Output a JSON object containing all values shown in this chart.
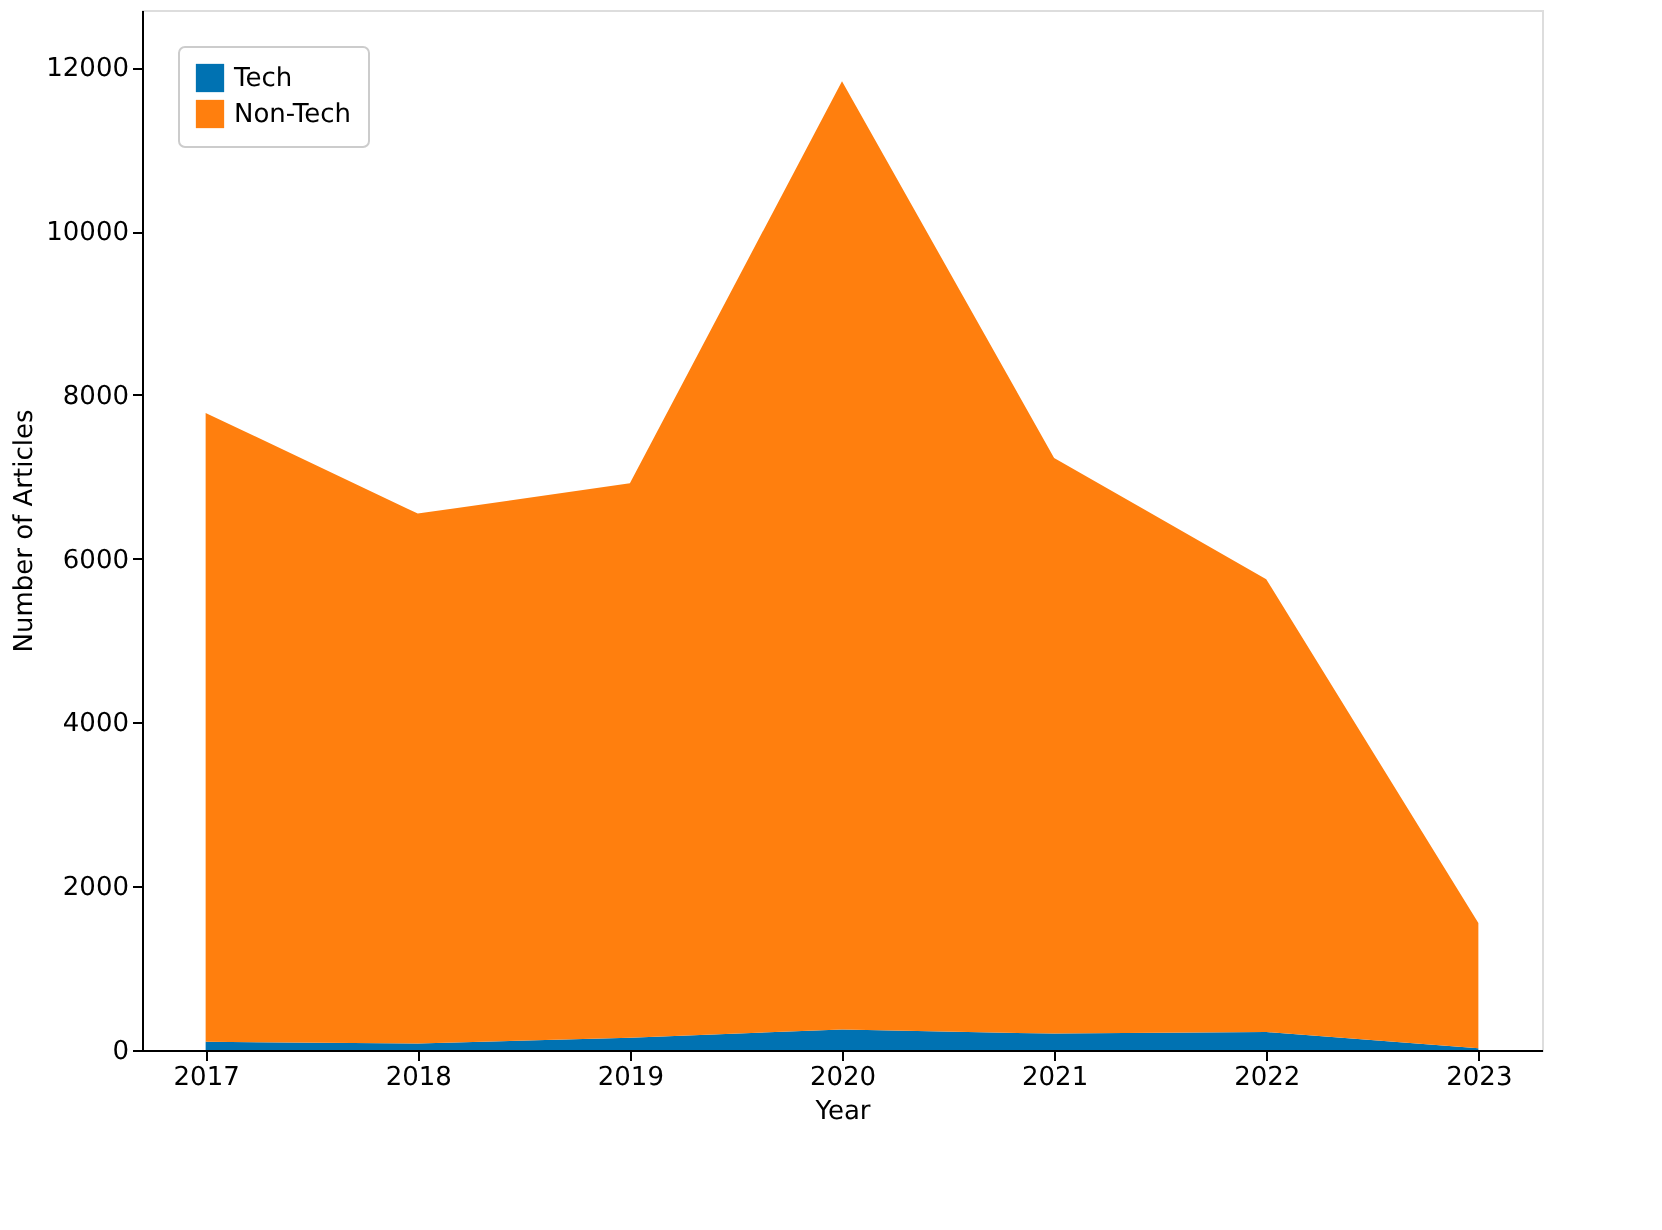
{
  "chart_data": {
    "type": "area",
    "stacked": true,
    "xlabel": "Year",
    "ylabel": "Number of Articles",
    "x": [
      2017,
      2018,
      2019,
      2020,
      2021,
      2022,
      2023
    ],
    "xlim": [
      2016.7,
      2023.3
    ],
    "xticks": [
      2017,
      2018,
      2019,
      2020,
      2021,
      2022,
      2023
    ],
    "ylim": [
      0,
      12700
    ],
    "yticks": [
      0,
      2000,
      4000,
      6000,
      8000,
      10000,
      12000
    ],
    "grid": false,
    "legend": "top left",
    "series": [
      {
        "name": "Tech",
        "color": "#0072b2",
        "values": [
          100,
          80,
          150,
          250,
          200,
          220,
          20
        ]
      },
      {
        "name": "Non-Tech",
        "color": "#ff7f0e",
        "values": [
          7680,
          6470,
          6770,
          11580,
          7030,
          5530,
          1530
        ]
      }
    ]
  }
}
